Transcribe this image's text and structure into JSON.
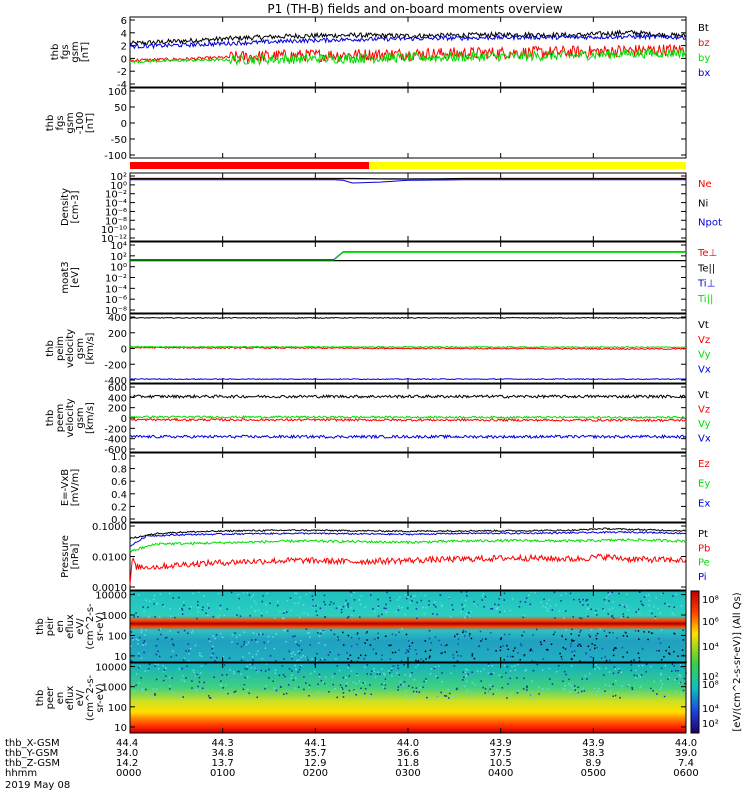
{
  "title": "P1 (TH-B) fields and on-board moments overview",
  "colors": {
    "black": "#000000",
    "red": "#ff0000",
    "green": "#00dd00",
    "blue": "#0000dd",
    "yellow": "#ffff00"
  },
  "chart_data": [
    {
      "panel": "fgs_gsm",
      "type": "line",
      "ylabel": [
        "thb",
        "fgs",
        "gsm",
        "[nT]"
      ],
      "yticks": [
        "6",
        "4",
        "2",
        "0",
        "-2",
        "-4"
      ],
      "ylim": [
        -4,
        6
      ],
      "legend": [
        "Bt",
        "bz",
        "by",
        "bx"
      ],
      "legend_colors": [
        "#000000",
        "#ff0000",
        "#00dd00",
        "#0000dd"
      ],
      "series": [
        {
          "name": "Bt",
          "x": [
            0,
            0.05,
            0.1,
            0.2,
            0.3,
            0.4,
            0.5,
            0.6,
            0.7,
            0.8,
            0.85,
            0.9,
            0.95,
            1.0
          ],
          "y": [
            2.2,
            2.4,
            2.6,
            3.0,
            3.3,
            3.4,
            3.3,
            3.4,
            3.5,
            3.4,
            3.6,
            3.8,
            3.5,
            3.3
          ]
        },
        {
          "name": "bz",
          "x": [
            0,
            0.1,
            0.2,
            0.3,
            0.4,
            0.5,
            0.6,
            0.7,
            0.8,
            0.9,
            1.0
          ],
          "y": [
            -0.2,
            0.0,
            0.3,
            0.5,
            0.6,
            0.7,
            0.8,
            0.9,
            1.0,
            1.2,
            1.3
          ]
        },
        {
          "name": "by",
          "x": [
            0,
            0.1,
            0.2,
            0.3,
            0.4,
            0.5,
            0.6,
            0.7,
            0.8,
            0.9,
            1.0
          ],
          "y": [
            -0.4,
            -0.2,
            -0.1,
            0.0,
            0.1,
            0.2,
            0.3,
            0.4,
            0.5,
            0.8,
            0.9
          ]
        },
        {
          "name": "bx",
          "x": [
            0,
            0.1,
            0.2,
            0.3,
            0.4,
            0.5,
            0.6,
            0.7,
            0.8,
            0.9,
            1.0
          ],
          "y": [
            1.8,
            2.0,
            2.3,
            2.6,
            2.8,
            2.9,
            3.0,
            3.1,
            3.1,
            3.2,
            3.1
          ]
        }
      ]
    },
    {
      "panel": "fgs_gsm_100",
      "type": "line",
      "ylabel": [
        "thb",
        "fgs",
        "gsm",
        "-100",
        "[nT]"
      ],
      "yticks": [
        "100",
        "50",
        "0",
        "-50",
        "-100"
      ],
      "ylim": [
        -130,
        100
      ],
      "legend": [],
      "legend_colors": [],
      "series": []
    },
    {
      "panel": "density",
      "type": "line",
      "log": true,
      "ylabel": [
        "Density",
        "[cm-3]"
      ],
      "yticks": [
        "10²",
        "10⁰",
        "10⁻²",
        "10⁻⁴",
        "10⁻⁶",
        "10⁻⁸",
        "10⁻¹⁰",
        "10⁻¹²"
      ],
      "ylim": [
        -13,
        2
      ],
      "legend": [
        "Ne",
        "Ni",
        "Npot"
      ],
      "legend_colors": [
        "#ff0000",
        "#000000",
        "#0000dd"
      ],
      "series": [
        {
          "name": "Ne",
          "x": [
            0,
            0.4,
            0.5,
            0.6,
            1.0
          ],
          "y": [
            0.7,
            0.7,
            0.6,
            0.7,
            0.7
          ]
        },
        {
          "name": "Ni",
          "x": [
            0,
            0.4,
            0.5,
            0.6,
            1.0
          ],
          "y": [
            0.8,
            0.8,
            0.7,
            0.8,
            0.8
          ]
        },
        {
          "name": "Npot",
          "x": [
            0,
            0.38,
            0.4,
            0.45,
            0.5,
            0.6,
            1.0
          ],
          "y": [
            0.5,
            0.5,
            -0.2,
            0.0,
            0.4,
            0.5,
            0.5
          ]
        }
      ]
    },
    {
      "panel": "moat3",
      "type": "line",
      "log": true,
      "ylabel": [
        "moat3",
        "[eV]"
      ],
      "yticks": [
        "10⁴",
        "10²",
        "10⁰",
        "10⁻²",
        "10⁻⁴",
        "10⁻⁶",
        "10⁻⁸"
      ],
      "ylim": [
        -9,
        6
      ],
      "legend": [
        "Te⊥",
        "Te||",
        "Ti⊥",
        "Ti||"
      ],
      "legend_colors": [
        "#ff0000",
        "#000000",
        "#0000dd",
        "#00dd00"
      ],
      "series": [
        {
          "name": "Te⊥",
          "x": [
            0,
            1.0
          ],
          "y": [
            2.0,
            2.0
          ]
        },
        {
          "name": "Te||",
          "x": [
            0,
            1.0
          ],
          "y": [
            2.1,
            2.1
          ]
        },
        {
          "name": "Ti⊥",
          "x": [
            0,
            0.38,
            0.381,
            1.0
          ],
          "y": [
            2.3,
            2.3,
            3.9,
            3.9
          ]
        },
        {
          "name": "Ti||",
          "x": [
            0,
            0.38,
            0.381,
            1.0
          ],
          "y": [
            2.2,
            2.2,
            3.8,
            3.8
          ]
        }
      ]
    },
    {
      "panel": "peim_velocity",
      "type": "line",
      "ylabel": [
        "thb",
        "peim",
        "velocity",
        "gsm",
        "[km/s]"
      ],
      "yticks": [
        "400",
        "200",
        "0",
        "-200",
        "-400"
      ],
      "ylim": [
        -400,
        400
      ],
      "legend": [
        "Vt",
        "Vz",
        "Vy",
        "Vx"
      ],
      "legend_colors": [
        "#000000",
        "#ff0000",
        "#00dd00",
        "#0000dd"
      ],
      "series": [
        {
          "name": "Vt",
          "x": [
            0,
            1.0
          ],
          "y": [
            355,
            355
          ]
        },
        {
          "name": "Vz",
          "x": [
            0,
            1.0
          ],
          "y": [
            10,
            -5
          ]
        },
        {
          "name": "Vy",
          "x": [
            0,
            1.0
          ],
          "y": [
            20,
            15
          ]
        },
        {
          "name": "Vx",
          "x": [
            0,
            1.0
          ],
          "y": [
            -355,
            -355
          ]
        }
      ]
    },
    {
      "panel": "peem_velocity",
      "type": "line",
      "ylabel": [
        "thb",
        "peem",
        "velocity",
        "gsm",
        "[km/s]"
      ],
      "yticks": [
        "600",
        "400",
        "200",
        "0",
        "-200",
        "-400",
        "-600"
      ],
      "ylim": [
        -600,
        600
      ],
      "legend": [
        "Vt",
        "Vz",
        "Vy",
        "Vx"
      ],
      "legend_colors": [
        "#000000",
        "#ff0000",
        "#00dd00",
        "#0000dd"
      ],
      "series": [
        {
          "name": "Vt",
          "x": [
            0,
            1.0
          ],
          "y": [
            380,
            380
          ]
        },
        {
          "name": "Vz",
          "x": [
            0,
            1.0
          ],
          "y": [
            -30,
            -40
          ]
        },
        {
          "name": "Vy",
          "x": [
            0,
            1.0
          ],
          "y": [
            20,
            10
          ]
        },
        {
          "name": "Vx",
          "x": [
            0,
            1.0
          ],
          "y": [
            -330,
            -330
          ]
        }
      ]
    },
    {
      "panel": "E_field",
      "type": "line",
      "ylabel": [
        "E=-VxB",
        "[mV/m]"
      ],
      "yticks": [
        "1.0",
        "0.8",
        "0.6",
        "0.4",
        "0.2",
        "0.0"
      ],
      "ylim": [
        0,
        1
      ],
      "legend": [
        "Ez",
        "Ey",
        "Ex"
      ],
      "legend_colors": [
        "#ff0000",
        "#00dd00",
        "#0000dd"
      ],
      "series": []
    },
    {
      "panel": "pressure",
      "type": "line",
      "log": true,
      "ylabel": [
        "Pressure",
        "[nPa]"
      ],
      "yticks": [
        "0.1000",
        "0.0100",
        "0.0010"
      ],
      "ylim": [
        -3.5,
        -0.9
      ],
      "legend": [
        "Pt",
        "Pb",
        "Pe",
        "Pi"
      ],
      "legend_colors": [
        "#000000",
        "#ff0000",
        "#00dd00",
        "#0000dd"
      ],
      "series": [
        {
          "name": "Pt",
          "x": [
            0,
            0.05,
            0.1,
            0.2,
            0.3,
            0.4,
            0.5,
            0.6,
            0.7,
            0.8,
            0.85,
            0.9,
            1.0
          ],
          "y": [
            -1.5,
            -1.3,
            -1.25,
            -1.2,
            -1.18,
            -1.2,
            -1.22,
            -1.2,
            -1.2,
            -1.18,
            -1.12,
            -1.15,
            -1.2
          ]
        },
        {
          "name": "Pb",
          "x": [
            0,
            0.005,
            0.01,
            0.05,
            0.1,
            0.2,
            0.3,
            0.4,
            0.5,
            0.6,
            0.7,
            0.8,
            0.85,
            0.9,
            1.0
          ],
          "y": [
            -3.3,
            -2.2,
            -2.6,
            -2.6,
            -2.5,
            -2.4,
            -2.35,
            -2.4,
            -2.35,
            -2.3,
            -2.25,
            -2.3,
            -2.2,
            -2.3,
            -2.35
          ]
        },
        {
          "name": "Pe",
          "x": [
            0,
            0.05,
            0.1,
            0.2,
            0.3,
            0.4,
            0.5,
            0.6,
            0.7,
            0.8,
            0.9,
            1.0
          ],
          "y": [
            -2.0,
            -1.7,
            -1.7,
            -1.65,
            -1.6,
            -1.62,
            -1.65,
            -1.6,
            -1.58,
            -1.6,
            -1.55,
            -1.6
          ]
        },
        {
          "name": "Pi",
          "x": [
            0,
            0.03,
            0.1,
            0.2,
            0.3,
            0.4,
            0.5,
            0.6,
            0.7,
            0.8,
            0.9,
            1.0
          ],
          "y": [
            -1.8,
            -1.4,
            -1.35,
            -1.32,
            -1.3,
            -1.32,
            -1.34,
            -1.3,
            -1.3,
            -1.28,
            -1.25,
            -1.3
          ]
        }
      ]
    },
    {
      "panel": "peir_spectrogram",
      "type": "heatmap",
      "ylabel": [
        "thb",
        "peir",
        "en",
        "eflux",
        "eV/",
        "(cm^2-s-",
        "sr-eV)"
      ],
      "yticks": [
        "10000",
        "1000",
        "100",
        "10"
      ],
      "ylim": [
        5,
        15000
      ],
      "legend": [],
      "legend_colors": []
    },
    {
      "panel": "peer_spectrogram",
      "type": "heatmap",
      "ylabel": [
        "thb",
        "peer",
        "en",
        "eflux",
        "eV/",
        "(cm^2-s-",
        "sr-eV)"
      ],
      "yticks": [
        "10000",
        "1000",
        "100",
        "10"
      ],
      "ylim": [
        5,
        15000
      ],
      "legend": [],
      "legend_colors": []
    }
  ],
  "colorbar": {
    "ticks": [
      "10⁸",
      "10⁶",
      "10⁴",
      "10²"
    ],
    "label": "[eV/(cm^2-s-sr-eV)] (All Qs)"
  },
  "xaxis": {
    "rows": [
      {
        "label": "thb_X-GSM",
        "values": [
          "44.4",
          "44.3",
          "44.1",
          "44.0",
          "43.9",
          "43.9",
          "44.0"
        ]
      },
      {
        "label": "thb_Y-GSM",
        "values": [
          "34.0",
          "34.8",
          "35.7",
          "36.6",
          "37.5",
          "38.3",
          "39.0"
        ]
      },
      {
        "label": "thb_Z-GSM",
        "values": [
          "14.2",
          "13.7",
          "12.9",
          "11.8",
          "10.5",
          "8.9",
          "7.4"
        ]
      },
      {
        "label": "hhmm",
        "values": [
          "0000",
          "0100",
          "0200",
          "0300",
          "0400",
          "0500",
          "0600"
        ]
      }
    ],
    "date": "2019 May 08"
  }
}
